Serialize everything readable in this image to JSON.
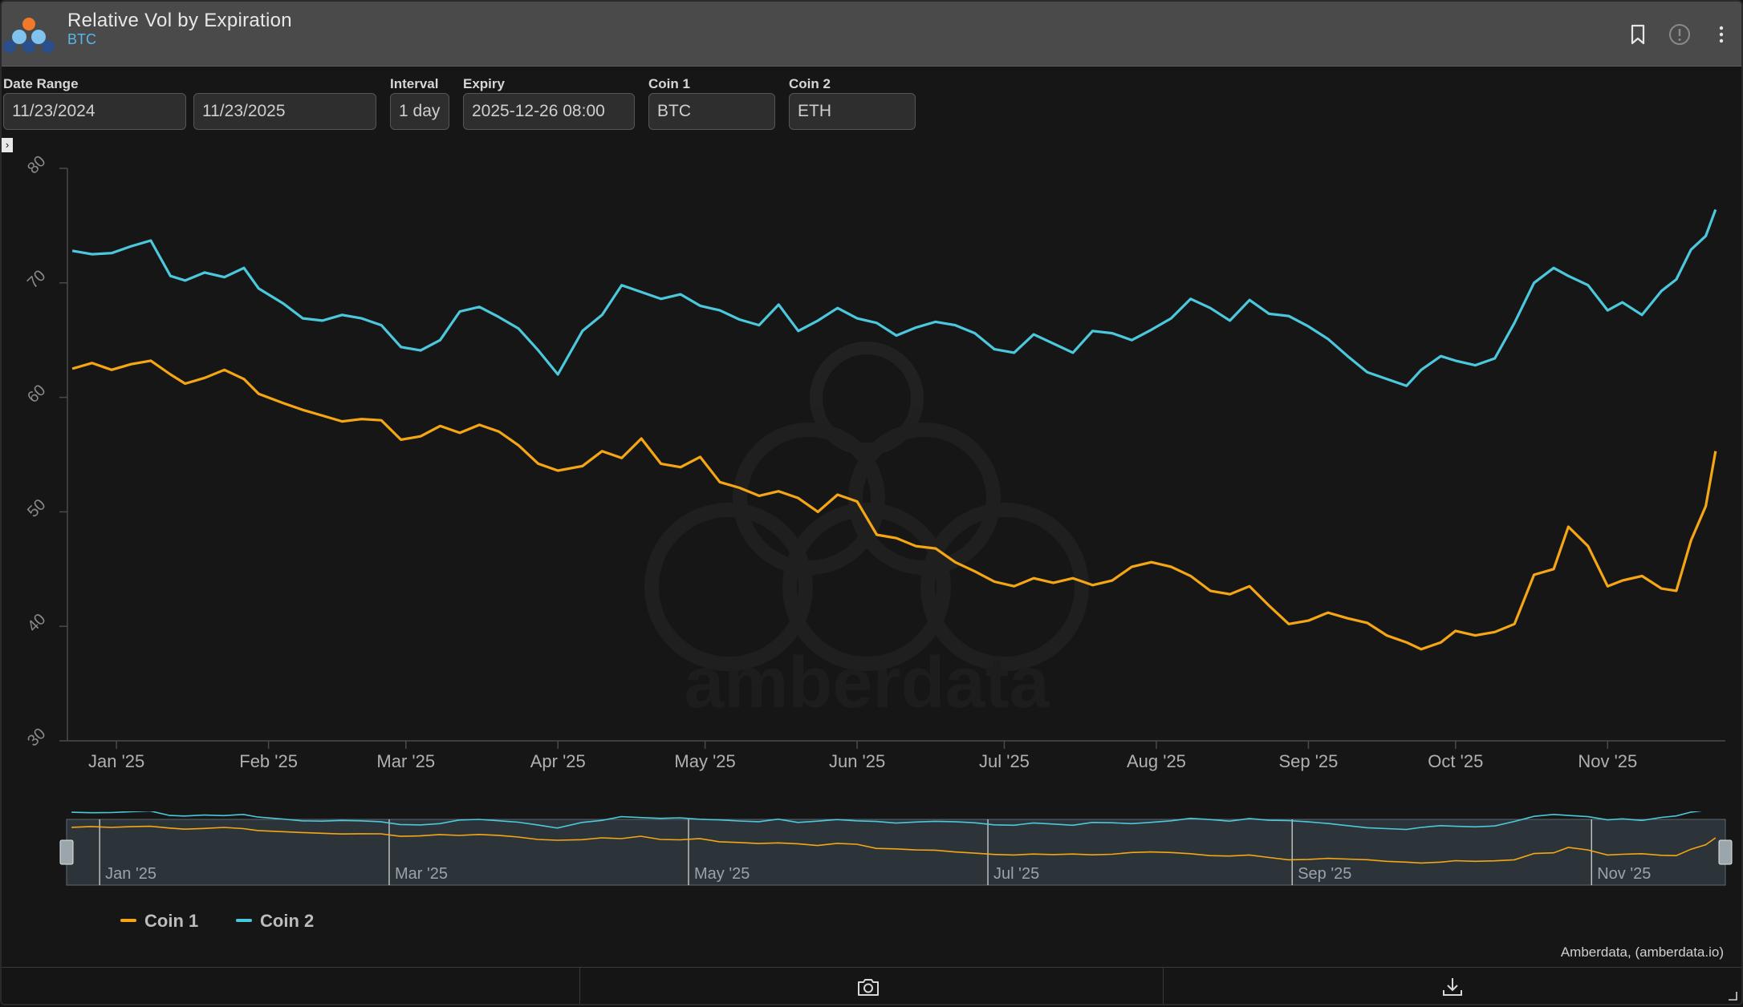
{
  "header": {
    "title": "Relative Vol by Expiration",
    "subtitle": "BTC",
    "icons": [
      "bookmark-icon",
      "info-icon",
      "more-vertical-icon"
    ]
  },
  "controls": {
    "date_range_label": "Date Range",
    "date_from": "11/23/2024",
    "date_to": "11/23/2025",
    "interval_label": "Interval",
    "interval": "1 day",
    "expiry_label": "Expiry",
    "expiry": "2025-12-26 08:00",
    "coin1_label": "Coin 1",
    "coin1": "BTC",
    "coin2_label": "Coin 2",
    "coin2": "ETH"
  },
  "watermark": "amberdata",
  "credit": "Amberdata, (amberdata.io)",
  "chart_data": {
    "type": "line",
    "title": "",
    "xlabel": "",
    "ylabel": "",
    "ylim": [
      30,
      80
    ],
    "yticks": [
      30,
      40,
      50,
      60,
      70,
      80
    ],
    "xticks": [
      {
        "date": "2025-01-01",
        "label": "Jan '25"
      },
      {
        "date": "2025-02-01",
        "label": "Feb '25"
      },
      {
        "date": "2025-03-01",
        "label": "Mar '25"
      },
      {
        "date": "2025-04-01",
        "label": "Apr '25"
      },
      {
        "date": "2025-05-01",
        "label": "May '25"
      },
      {
        "date": "2025-06-01",
        "label": "Jun '25"
      },
      {
        "date": "2025-07-01",
        "label": "Jul '25"
      },
      {
        "date": "2025-08-01",
        "label": "Aug '25"
      },
      {
        "date": "2025-09-01",
        "label": "Sep '25"
      },
      {
        "date": "2025-10-01",
        "label": "Oct '25"
      },
      {
        "date": "2025-11-01",
        "label": "Nov '25"
      }
    ],
    "navigator_ticks": [
      "Jan '25",
      "Mar '25",
      "May '25",
      "Jul '25",
      "Sep '25",
      "Nov '25"
    ],
    "grid": false,
    "legend": "bottom-left",
    "series": [
      {
        "name": "Coin 1",
        "color": "#f5a614",
        "points": [
          [
            "2024-12-23",
            62.5
          ],
          [
            "2024-12-27",
            63.0
          ],
          [
            "2024-12-31",
            62.4
          ],
          [
            "2025-01-04",
            62.9
          ],
          [
            "2025-01-08",
            63.2
          ],
          [
            "2025-01-12",
            62.0
          ],
          [
            "2025-01-15",
            61.2
          ],
          [
            "2025-01-19",
            61.7
          ],
          [
            "2025-01-23",
            62.4
          ],
          [
            "2025-01-27",
            61.6
          ],
          [
            "2025-01-30",
            60.3
          ],
          [
            "2025-02-04",
            59.5
          ],
          [
            "2025-02-08",
            58.9
          ],
          [
            "2025-02-12",
            58.4
          ],
          [
            "2025-02-16",
            57.9
          ],
          [
            "2025-02-20",
            58.1
          ],
          [
            "2025-02-24",
            58.0
          ],
          [
            "2025-02-28",
            56.3
          ],
          [
            "2025-03-04",
            56.6
          ],
          [
            "2025-03-08",
            57.5
          ],
          [
            "2025-03-12",
            56.9
          ],
          [
            "2025-03-16",
            57.6
          ],
          [
            "2025-03-20",
            57.0
          ],
          [
            "2025-03-24",
            55.8
          ],
          [
            "2025-03-28",
            54.2
          ],
          [
            "2025-04-01",
            53.6
          ],
          [
            "2025-04-06",
            54.0
          ],
          [
            "2025-04-10",
            55.3
          ],
          [
            "2025-04-14",
            54.7
          ],
          [
            "2025-04-18",
            56.4
          ],
          [
            "2025-04-22",
            54.2
          ],
          [
            "2025-04-26",
            53.9
          ],
          [
            "2025-04-30",
            54.8
          ],
          [
            "2025-05-04",
            52.6
          ],
          [
            "2025-05-08",
            52.1
          ],
          [
            "2025-05-12",
            51.4
          ],
          [
            "2025-05-16",
            51.8
          ],
          [
            "2025-05-20",
            51.2
          ],
          [
            "2025-05-24",
            50.0
          ],
          [
            "2025-05-28",
            51.5
          ],
          [
            "2025-06-01",
            50.9
          ],
          [
            "2025-06-05",
            48.0
          ],
          [
            "2025-06-09",
            47.7
          ],
          [
            "2025-06-13",
            47.0
          ],
          [
            "2025-06-17",
            46.8
          ],
          [
            "2025-06-21",
            45.6
          ],
          [
            "2025-06-25",
            44.8
          ],
          [
            "2025-06-29",
            43.9
          ],
          [
            "2025-07-03",
            43.5
          ],
          [
            "2025-07-07",
            44.2
          ],
          [
            "2025-07-11",
            43.8
          ],
          [
            "2025-07-15",
            44.2
          ],
          [
            "2025-07-19",
            43.6
          ],
          [
            "2025-07-23",
            44.0
          ],
          [
            "2025-07-27",
            45.2
          ],
          [
            "2025-07-31",
            45.6
          ],
          [
            "2025-08-04",
            45.2
          ],
          [
            "2025-08-08",
            44.4
          ],
          [
            "2025-08-12",
            43.1
          ],
          [
            "2025-08-16",
            42.8
          ],
          [
            "2025-08-20",
            43.5
          ],
          [
            "2025-08-24",
            41.8
          ],
          [
            "2025-08-28",
            40.2
          ],
          [
            "2025-09-01",
            40.5
          ],
          [
            "2025-09-05",
            41.2
          ],
          [
            "2025-09-09",
            40.7
          ],
          [
            "2025-09-13",
            40.3
          ],
          [
            "2025-09-17",
            39.2
          ],
          [
            "2025-09-21",
            38.6
          ],
          [
            "2025-09-24",
            38.0
          ],
          [
            "2025-09-28",
            38.6
          ],
          [
            "2025-10-01",
            39.6
          ],
          [
            "2025-10-05",
            39.2
          ],
          [
            "2025-10-09",
            39.5
          ],
          [
            "2025-10-13",
            40.2
          ],
          [
            "2025-10-17",
            44.5
          ],
          [
            "2025-10-21",
            45.0
          ],
          [
            "2025-10-24",
            48.7
          ],
          [
            "2025-10-28",
            47.0
          ],
          [
            "2025-11-01",
            43.5
          ],
          [
            "2025-11-04",
            44.0
          ],
          [
            "2025-11-08",
            44.4
          ],
          [
            "2025-11-12",
            43.3
          ],
          [
            "2025-11-15",
            43.1
          ],
          [
            "2025-11-18",
            47.5
          ],
          [
            "2025-11-21",
            50.5
          ],
          [
            "2025-11-23",
            55.3
          ]
        ]
      },
      {
        "name": "Coin 2",
        "color": "#4cc8dc",
        "points": [
          [
            "2024-12-23",
            72.8
          ],
          [
            "2024-12-27",
            72.5
          ],
          [
            "2024-12-31",
            72.6
          ],
          [
            "2025-01-04",
            73.2
          ],
          [
            "2025-01-08",
            73.7
          ],
          [
            "2025-01-12",
            70.6
          ],
          [
            "2025-01-15",
            70.2
          ],
          [
            "2025-01-19",
            70.9
          ],
          [
            "2025-01-23",
            70.5
          ],
          [
            "2025-01-27",
            71.3
          ],
          [
            "2025-01-30",
            69.5
          ],
          [
            "2025-02-04",
            68.2
          ],
          [
            "2025-02-08",
            66.9
          ],
          [
            "2025-02-12",
            66.7
          ],
          [
            "2025-02-16",
            67.2
          ],
          [
            "2025-02-20",
            66.9
          ],
          [
            "2025-02-24",
            66.3
          ],
          [
            "2025-02-28",
            64.4
          ],
          [
            "2025-03-04",
            64.1
          ],
          [
            "2025-03-08",
            65.0
          ],
          [
            "2025-03-12",
            67.5
          ],
          [
            "2025-03-16",
            67.9
          ],
          [
            "2025-03-20",
            67.0
          ],
          [
            "2025-03-24",
            66.0
          ],
          [
            "2025-03-28",
            64.1
          ],
          [
            "2025-04-01",
            62.0
          ],
          [
            "2025-04-06",
            65.8
          ],
          [
            "2025-04-10",
            67.2
          ],
          [
            "2025-04-14",
            69.8
          ],
          [
            "2025-04-18",
            69.2
          ],
          [
            "2025-04-22",
            68.6
          ],
          [
            "2025-04-26",
            69.0
          ],
          [
            "2025-04-30",
            68.0
          ],
          [
            "2025-05-04",
            67.6
          ],
          [
            "2025-05-08",
            66.8
          ],
          [
            "2025-05-12",
            66.3
          ],
          [
            "2025-05-16",
            68.1
          ],
          [
            "2025-05-20",
            65.8
          ],
          [
            "2025-05-24",
            66.7
          ],
          [
            "2025-05-28",
            67.8
          ],
          [
            "2025-06-01",
            66.9
          ],
          [
            "2025-06-05",
            66.5
          ],
          [
            "2025-06-09",
            65.4
          ],
          [
            "2025-06-13",
            66.1
          ],
          [
            "2025-06-17",
            66.6
          ],
          [
            "2025-06-21",
            66.3
          ],
          [
            "2025-06-25",
            65.6
          ],
          [
            "2025-06-29",
            64.2
          ],
          [
            "2025-07-03",
            63.9
          ],
          [
            "2025-07-07",
            65.5
          ],
          [
            "2025-07-11",
            64.7
          ],
          [
            "2025-07-15",
            63.9
          ],
          [
            "2025-07-19",
            65.8
          ],
          [
            "2025-07-23",
            65.6
          ],
          [
            "2025-07-27",
            65.0
          ],
          [
            "2025-07-31",
            65.9
          ],
          [
            "2025-08-04",
            66.9
          ],
          [
            "2025-08-08",
            68.6
          ],
          [
            "2025-08-12",
            67.8
          ],
          [
            "2025-08-16",
            66.7
          ],
          [
            "2025-08-20",
            68.5
          ],
          [
            "2025-08-24",
            67.3
          ],
          [
            "2025-08-28",
            67.1
          ],
          [
            "2025-09-01",
            66.2
          ],
          [
            "2025-09-05",
            65.1
          ],
          [
            "2025-09-09",
            63.6
          ],
          [
            "2025-09-13",
            62.2
          ],
          [
            "2025-09-17",
            61.6
          ],
          [
            "2025-09-21",
            61.0
          ],
          [
            "2025-09-24",
            62.4
          ],
          [
            "2025-09-28",
            63.6
          ],
          [
            "2025-10-01",
            63.2
          ],
          [
            "2025-10-05",
            62.8
          ],
          [
            "2025-10-09",
            63.4
          ],
          [
            "2025-10-13",
            66.5
          ],
          [
            "2025-10-17",
            70.0
          ],
          [
            "2025-10-21",
            71.3
          ],
          [
            "2025-10-24",
            70.6
          ],
          [
            "2025-10-28",
            69.8
          ],
          [
            "2025-11-01",
            67.6
          ],
          [
            "2025-11-04",
            68.3
          ],
          [
            "2025-11-08",
            67.2
          ],
          [
            "2025-11-12",
            69.3
          ],
          [
            "2025-11-15",
            70.3
          ],
          [
            "2025-11-18",
            72.9
          ],
          [
            "2025-11-21",
            74.1
          ],
          [
            "2025-11-23",
            76.4
          ]
        ]
      }
    ]
  }
}
